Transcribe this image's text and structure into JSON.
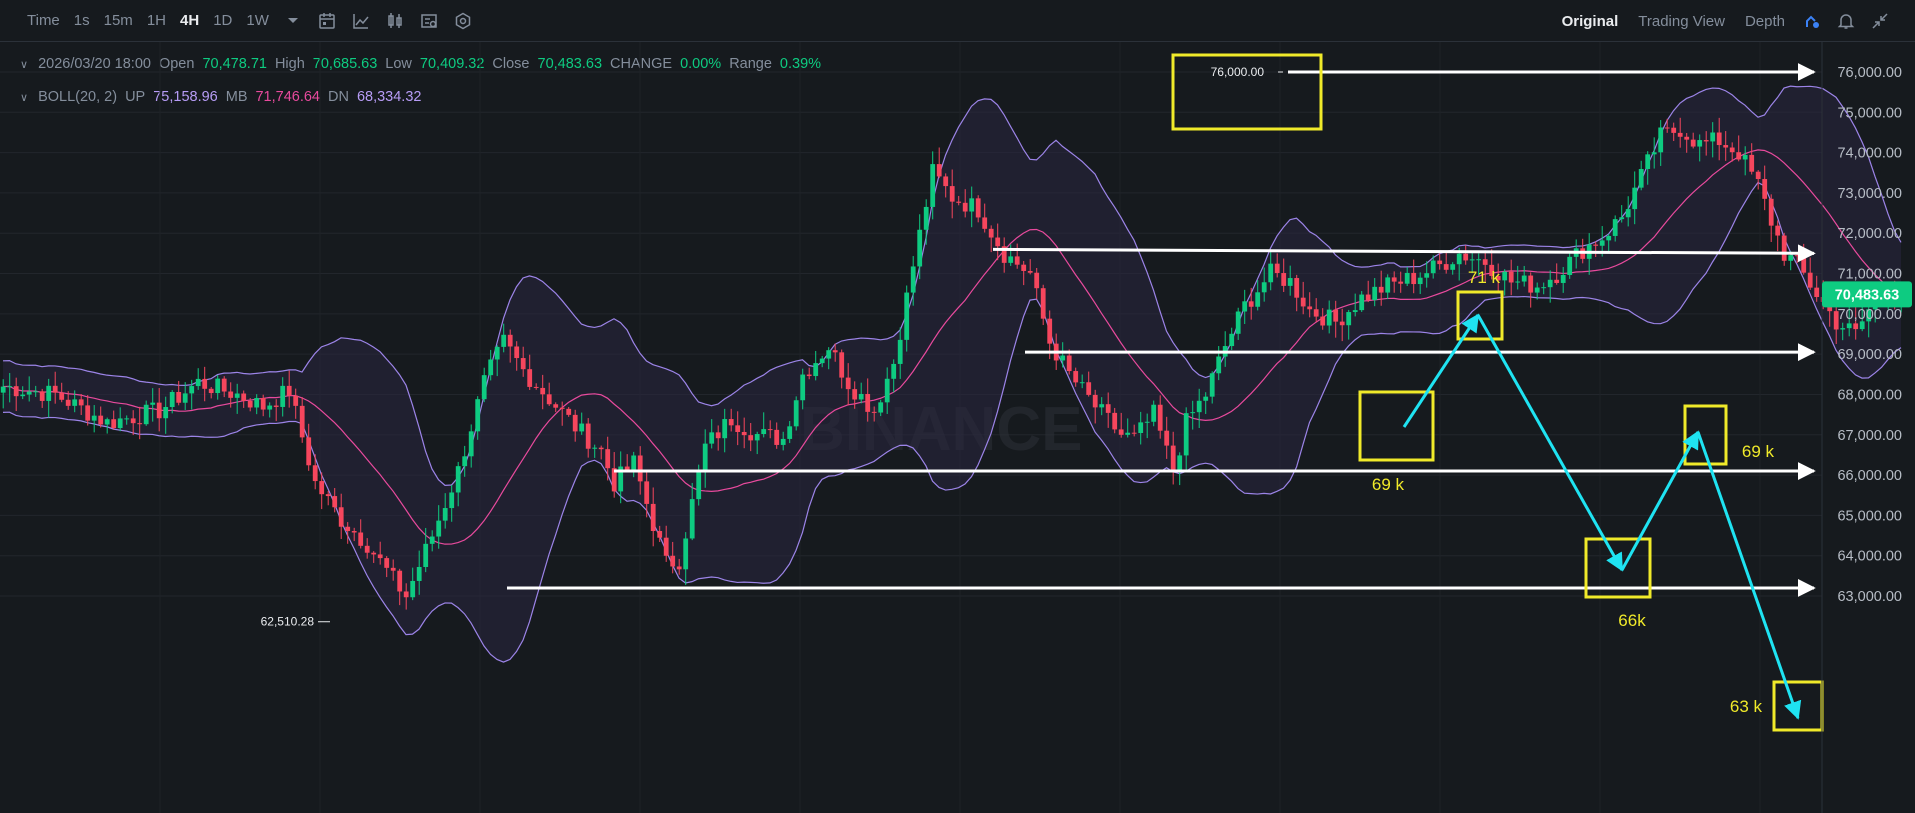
{
  "toolbar": {
    "intervals": [
      "Time",
      "1s",
      "15m",
      "1H",
      "4H",
      "1D",
      "1W"
    ],
    "active_interval": "4H",
    "views": [
      "Original",
      "Trading View",
      "Depth"
    ],
    "active_view": "Original",
    "icons": [
      "chevron-down-icon",
      "calendar-icon",
      "line-tool-icon",
      "indicator-icon",
      "chart-settings-icon",
      "hexagon-settings-icon",
      "draw-tool-icon",
      "bell-icon",
      "collapse-icon"
    ]
  },
  "ohlc": {
    "date": "2026/03/20 18:00",
    "open_label": "Open",
    "open": "70,478.71",
    "high_label": "High",
    "high": "70,685.63",
    "low_label": "Low",
    "low": "70,409.32",
    "close_label": "Close",
    "close": "70,483.63",
    "change_label": "CHANGE",
    "change": "0.00%",
    "range_label": "Range",
    "range": "0.39%"
  },
  "boll": {
    "name": "BOLL(20, 2)",
    "up_label": "UP",
    "up": "75,158.96",
    "mb_label": "MB",
    "mb": "71,746.64",
    "dn_label": "DN",
    "dn": "68,334.32"
  },
  "colors": {
    "background": "#161a1e",
    "up_candle": "#0ecb81",
    "down_candle": "#f6465d",
    "boll_band": "#9c84e8",
    "boll_mid": "#e84a9d",
    "annotation_box": "#f0ea2a",
    "arrow_path": "#1fe3f2",
    "level_line": "#ffffff",
    "price_tag": "#0ecb81"
  },
  "watermark": "BINANCE",
  "chart_data": {
    "type": "candlestick",
    "interval": "4H",
    "y_axis": {
      "range": [
        62300,
        77000
      ],
      "tick_values": [
        63000,
        64000,
        65000,
        66000,
        67000,
        68000,
        69000,
        70000,
        71000,
        72000,
        73000,
        74000,
        75000,
        76000
      ],
      "tick_labels": [
        "63,000.00",
        "64,000.00",
        "65,000.00",
        "66,000.00",
        "67,000.00",
        "68,000.00",
        "69,000.00",
        "70,000.00",
        "71,000.00",
        "72,000.00",
        "73,000.00",
        "74,000.00",
        "75,000.00",
        "76,000.00"
      ]
    },
    "last_price": 70483.63,
    "last_price_label": "70,483.63",
    "high_marker": {
      "value": 76000,
      "label": "76,000.00"
    },
    "low_marker": {
      "value": 62510.28,
      "label": "62,510.28"
    },
    "close_anchors": [
      [
        0,
        68200
      ],
      [
        8,
        68000
      ],
      [
        16,
        67300
      ],
      [
        24,
        67600
      ],
      [
        30,
        68300
      ],
      [
        36,
        68000
      ],
      [
        40,
        67700
      ],
      [
        44,
        68100
      ],
      [
        48,
        65800
      ],
      [
        52,
        64900
      ],
      [
        56,
        64300
      ],
      [
        60,
        63400
      ],
      [
        62,
        63000
      ],
      [
        66,
        64500
      ],
      [
        70,
        66100
      ],
      [
        74,
        68300
      ],
      [
        77,
        69300
      ],
      [
        80,
        68600
      ],
      [
        84,
        67900
      ],
      [
        88,
        67200
      ],
      [
        92,
        66600
      ],
      [
        94,
        65800
      ],
      [
        97,
        66300
      ],
      [
        100,
        64800
      ],
      [
        102,
        63800
      ],
      [
        104,
        63900
      ],
      [
        108,
        66700
      ],
      [
        112,
        67400
      ],
      [
        116,
        67000
      ],
      [
        120,
        66900
      ],
      [
        123,
        68500
      ],
      [
        127,
        69200
      ],
      [
        130,
        68300
      ],
      [
        134,
        67600
      ],
      [
        137,
        68800
      ],
      [
        140,
        71200
      ],
      [
        143,
        73500
      ],
      [
        146,
        72900
      ],
      [
        150,
        72600
      ],
      [
        154,
        71500
      ],
      [
        158,
        71000
      ],
      [
        161,
        69300
      ],
      [
        164,
        68500
      ],
      [
        168,
        67700
      ],
      [
        172,
        67000
      ],
      [
        174,
        66900
      ],
      [
        177,
        67500
      ],
      [
        180,
        66100
      ],
      [
        182,
        67300
      ],
      [
        185,
        68000
      ],
      [
        188,
        69200
      ],
      [
        191,
        70200
      ],
      [
        195,
        71000
      ],
      [
        198,
        70800
      ],
      [
        201,
        70100
      ],
      [
        205,
        69800
      ],
      [
        209,
        70400
      ],
      [
        213,
        70700
      ],
      [
        217,
        70900
      ],
      [
        221,
        71200
      ],
      [
        224,
        71500
      ],
      [
        228,
        71300
      ],
      [
        232,
        70800
      ],
      [
        236,
        70700
      ],
      [
        239,
        71000
      ],
      [
        243,
        71600
      ],
      [
        246,
        71900
      ],
      [
        249,
        72400
      ],
      [
        252,
        73400
      ],
      [
        255,
        74400
      ],
      [
        258,
        74600
      ],
      [
        261,
        74200
      ],
      [
        264,
        74300
      ],
      [
        267,
        74000
      ],
      [
        270,
        73200
      ],
      [
        272,
        72300
      ],
      [
        274,
        71500
      ],
      [
        276,
        71200
      ],
      [
        279,
        70500
      ],
      [
        282,
        69800
      ],
      [
        285,
        69500
      ],
      [
        287,
        70100
      ],
      [
        290,
        70700
      ],
      [
        292,
        70484
      ]
    ],
    "candle_count": 293,
    "bollinger": {
      "period": 20,
      "stddev": 2,
      "up": 75158.96,
      "mb": 71746.64,
      "dn": 68334.32
    },
    "annotations": {
      "levels": [
        {
          "value": 76000,
          "arrow": true
        },
        {
          "value": 71600,
          "arrow": true
        },
        {
          "value": 69050,
          "arrow": true
        },
        {
          "value": 66100,
          "arrow": true
        },
        {
          "value": 63200,
          "arrow": true
        }
      ],
      "boxes": [
        {
          "value": 76000,
          "label": ""
        },
        {
          "value": 71400,
          "label": "71 k"
        },
        {
          "value": 69100,
          "label": "69 k"
        },
        {
          "value": 66200,
          "label": "66k"
        },
        {
          "value": 69000,
          "label": "69 k"
        },
        {
          "value": 63300,
          "label": "63 k"
        }
      ],
      "path_values": [
        69200,
        71400,
        66200,
        69000,
        63300
      ]
    }
  }
}
